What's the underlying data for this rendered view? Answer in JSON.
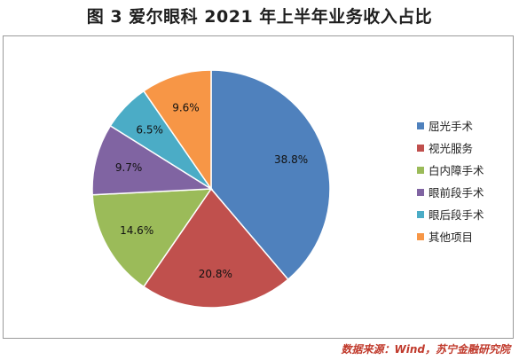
{
  "title": "图 3  爱尔眼科 2021 年上半年业务收入占比",
  "source": "数据来源：Wind，苏宁金融研究院",
  "chart_data": {
    "type": "pie",
    "title": "图 3  爱尔眼科 2021 年上半年业务收入占比",
    "legend_position": "right",
    "series": [
      {
        "name": "屈光手术",
        "value": 38.8,
        "label": "38.8%",
        "color": "#4F81BD"
      },
      {
        "name": "视光服务",
        "value": 20.8,
        "label": "20.8%",
        "color": "#C0504D"
      },
      {
        "name": "白内障手术",
        "value": 14.6,
        "label": "14.6%",
        "color": "#9BBB59"
      },
      {
        "name": "眼前段手术",
        "value": 9.7,
        "label": "9.7%",
        "color": "#8064A2"
      },
      {
        "name": "眼后段手术",
        "value": 6.5,
        "label": "6.5%",
        "color": "#4BACC6"
      },
      {
        "name": "其他项目",
        "value": 9.6,
        "label": "9.6%",
        "color": "#F79646"
      }
    ]
  }
}
